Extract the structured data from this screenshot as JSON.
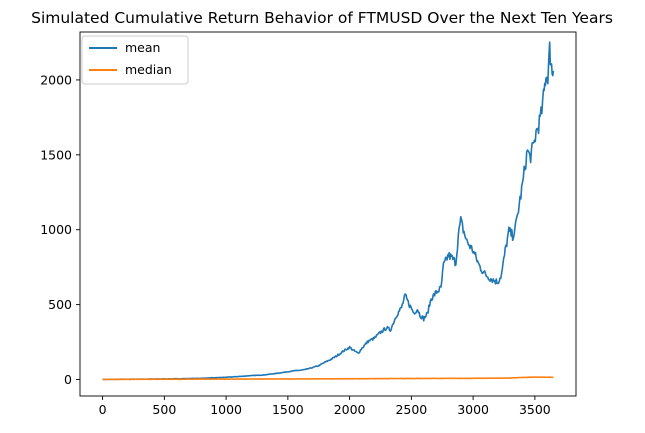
{
  "chart_data": {
    "type": "line",
    "title": "Simulated Cumulative Return Behavior of FTMUSD Over the Next Ten Years",
    "xlabel": "",
    "ylabel": "",
    "xlim": [
      -183,
      3833
    ],
    "ylim": [
      -110,
      2320
    ],
    "xticks": [
      0,
      500,
      1000,
      1500,
      2000,
      2500,
      3000,
      3500
    ],
    "yticks": [
      0,
      500,
      1000,
      1500,
      2000
    ],
    "grid": false,
    "legend": "top-left",
    "series": [
      {
        "name": "mean",
        "color": "#1f77b4",
        "points": [
          [
            0,
            1
          ],
          [
            200,
            2
          ],
          [
            400,
            3
          ],
          [
            600,
            5
          ],
          [
            800,
            8
          ],
          [
            1000,
            15
          ],
          [
            1100,
            20
          ],
          [
            1200,
            26
          ],
          [
            1300,
            30
          ],
          [
            1400,
            40
          ],
          [
            1500,
            52
          ],
          [
            1550,
            58
          ],
          [
            1600,
            62
          ],
          [
            1650,
            68
          ],
          [
            1700,
            80
          ],
          [
            1750,
            92
          ],
          [
            1800,
            115
          ],
          [
            1850,
            135
          ],
          [
            1900,
            160
          ],
          [
            1950,
            190
          ],
          [
            2000,
            215
          ],
          [
            2030,
            195
          ],
          [
            2070,
            175
          ],
          [
            2100,
            210
          ],
          [
            2150,
            255
          ],
          [
            2200,
            275
          ],
          [
            2250,
            315
          ],
          [
            2300,
            345
          ],
          [
            2330,
            330
          ],
          [
            2380,
            430
          ],
          [
            2420,
            480
          ],
          [
            2450,
            560
          ],
          [
            2480,
            505
          ],
          [
            2520,
            445
          ],
          [
            2550,
            470
          ],
          [
            2570,
            430
          ],
          [
            2600,
            405
          ],
          [
            2630,
            440
          ],
          [
            2660,
            540
          ],
          [
            2700,
            580
          ],
          [
            2740,
            610
          ],
          [
            2760,
            760
          ],
          [
            2800,
            830
          ],
          [
            2830,
            810
          ],
          [
            2860,
            780
          ],
          [
            2880,
            960
          ],
          [
            2900,
            1060
          ],
          [
            2920,
            1000
          ],
          [
            2950,
            920
          ],
          [
            3000,
            860
          ],
          [
            3050,
            760
          ],
          [
            3080,
            720
          ],
          [
            3100,
            700
          ],
          [
            3150,
            670
          ],
          [
            3200,
            650
          ],
          [
            3230,
            700
          ],
          [
            3260,
            860
          ],
          [
            3290,
            990
          ],
          [
            3320,
            960
          ],
          [
            3340,
            1000
          ],
          [
            3360,
            1100
          ],
          [
            3380,
            1200
          ],
          [
            3400,
            1300
          ],
          [
            3420,
            1420
          ],
          [
            3440,
            1530
          ],
          [
            3460,
            1480
          ],
          [
            3490,
            1560
          ],
          [
            3510,
            1650
          ],
          [
            3530,
            1700
          ],
          [
            3550,
            1760
          ],
          [
            3570,
            1880
          ],
          [
            3580,
            1960
          ],
          [
            3590,
            2050
          ],
          [
            3600,
            2000
          ],
          [
            3610,
            2080
          ],
          [
            3620,
            2200
          ],
          [
            3630,
            2130
          ],
          [
            3640,
            2050
          ],
          [
            3650,
            2060
          ]
        ]
      },
      {
        "name": "median",
        "color": "#ff7f0e",
        "points": [
          [
            0,
            1
          ],
          [
            500,
            2
          ],
          [
            1000,
            3
          ],
          [
            1500,
            4
          ],
          [
            2000,
            5
          ],
          [
            2500,
            7
          ],
          [
            3000,
            8
          ],
          [
            3300,
            10
          ],
          [
            3400,
            14
          ],
          [
            3500,
            16
          ],
          [
            3650,
            15
          ]
        ]
      }
    ]
  }
}
